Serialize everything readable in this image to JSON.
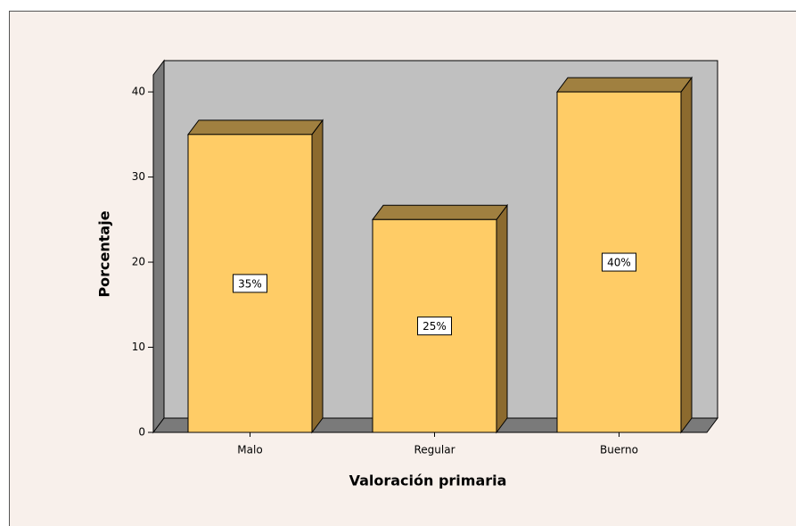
{
  "chart_data": {
    "type": "bar3d",
    "categories": [
      "Malo",
      "Regular",
      "Buerno"
    ],
    "values": [
      35,
      25,
      40
    ],
    "value_labels": [
      "35%",
      "25%",
      "40%"
    ],
    "color": "#ffcc66",
    "x_label": "Valoración primaria",
    "y_label": "Porcentaje",
    "ylim": [
      0,
      42
    ],
    "yticks": [
      0,
      10,
      20,
      30,
      40
    ]
  }
}
